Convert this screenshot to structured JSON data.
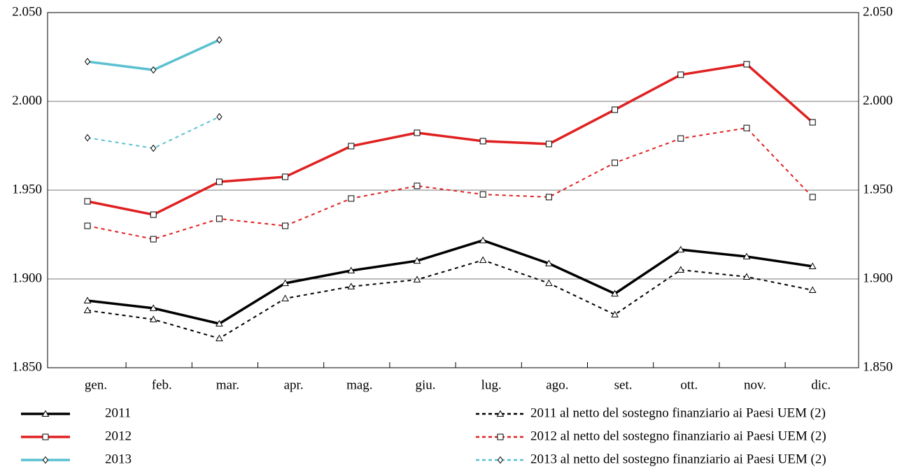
{
  "chart_data": {
    "type": "line",
    "categories": [
      "gen.",
      "feb.",
      "mar.",
      "apr.",
      "mag.",
      "giu.",
      "lug.",
      "ago.",
      "set.",
      "ott.",
      "nov.",
      "dic."
    ],
    "series": [
      {
        "name": "2011",
        "color": "#000000",
        "marker": "triangle",
        "dashed": false,
        "values": [
          1887.8,
          1883.5,
          1874.8,
          1897.6,
          1904.7,
          1910.2,
          1921.7,
          1908.7,
          1891.7,
          1916.5,
          1912.6,
          1907.1
        ]
      },
      {
        "name": "2012",
        "color": "#e02020",
        "marker": "square",
        "dashed": false,
        "values": [
          1943.7,
          1936.2,
          1954.7,
          1957.5,
          1974.8,
          1982.3,
          1977.6,
          1976,
          1995.3,
          2015,
          2020.9,
          1988.2
        ]
      },
      {
        "name": "2013",
        "color": "#5bc0d0",
        "marker": "diamond",
        "dashed": false,
        "values": [
          2022.4,
          2017.7,
          2034.6,
          null,
          null,
          null,
          null,
          null,
          null,
          null,
          null,
          null
        ]
      },
      {
        "name": "2011 al netto del sostegno finanziario ai Paesi UEM (2)",
        "color": "#000000",
        "marker": "triangle",
        "dashed": true,
        "values": [
          1882.3,
          1877.2,
          1866.5,
          1889,
          1895.7,
          1899.6,
          1910.6,
          1897.6,
          1879.9,
          1905.1,
          1901.2,
          1893.7
        ]
      },
      {
        "name": "2012 al netto del sostegno finanziario ai Paesi UEM (2)",
        "color": "#e02020",
        "marker": "square",
        "dashed": true,
        "values": [
          1929.9,
          1922.4,
          1933.9,
          1929.9,
          1945.3,
          1952.4,
          1947.6,
          1946.1,
          1965.4,
          1979.1,
          1985,
          1946.1
        ]
      },
      {
        "name": "2013 al netto del sostegno finanziario ai Paesi UEM (2)",
        "color": "#5bc0d0",
        "marker": "diamond",
        "dashed": true,
        "values": [
          1979.5,
          1973.6,
          1991.3,
          null,
          null,
          null,
          null,
          null,
          null,
          null,
          null,
          null
        ]
      }
    ],
    "ylim": [
      1850,
      2050
    ],
    "yticks": [
      {
        "value": 1850,
        "label": "1.850"
      },
      {
        "value": 1900,
        "label": "1.900"
      },
      {
        "value": 1950,
        "label": "1.950"
      },
      {
        "value": 2000,
        "label": "2.000"
      },
      {
        "value": 2050,
        "label": "2.050"
      }
    ],
    "y2lim": [
      1850,
      2050
    ],
    "y2ticks": [
      {
        "value": 1850,
        "label": "1.850"
      },
      {
        "value": 1900,
        "label": "1.900"
      },
      {
        "value": 1950,
        "label": "1.950"
      },
      {
        "value": 2000,
        "label": "2.000"
      },
      {
        "value": 2050,
        "label": "2.050"
      }
    ],
    "grid": true
  }
}
